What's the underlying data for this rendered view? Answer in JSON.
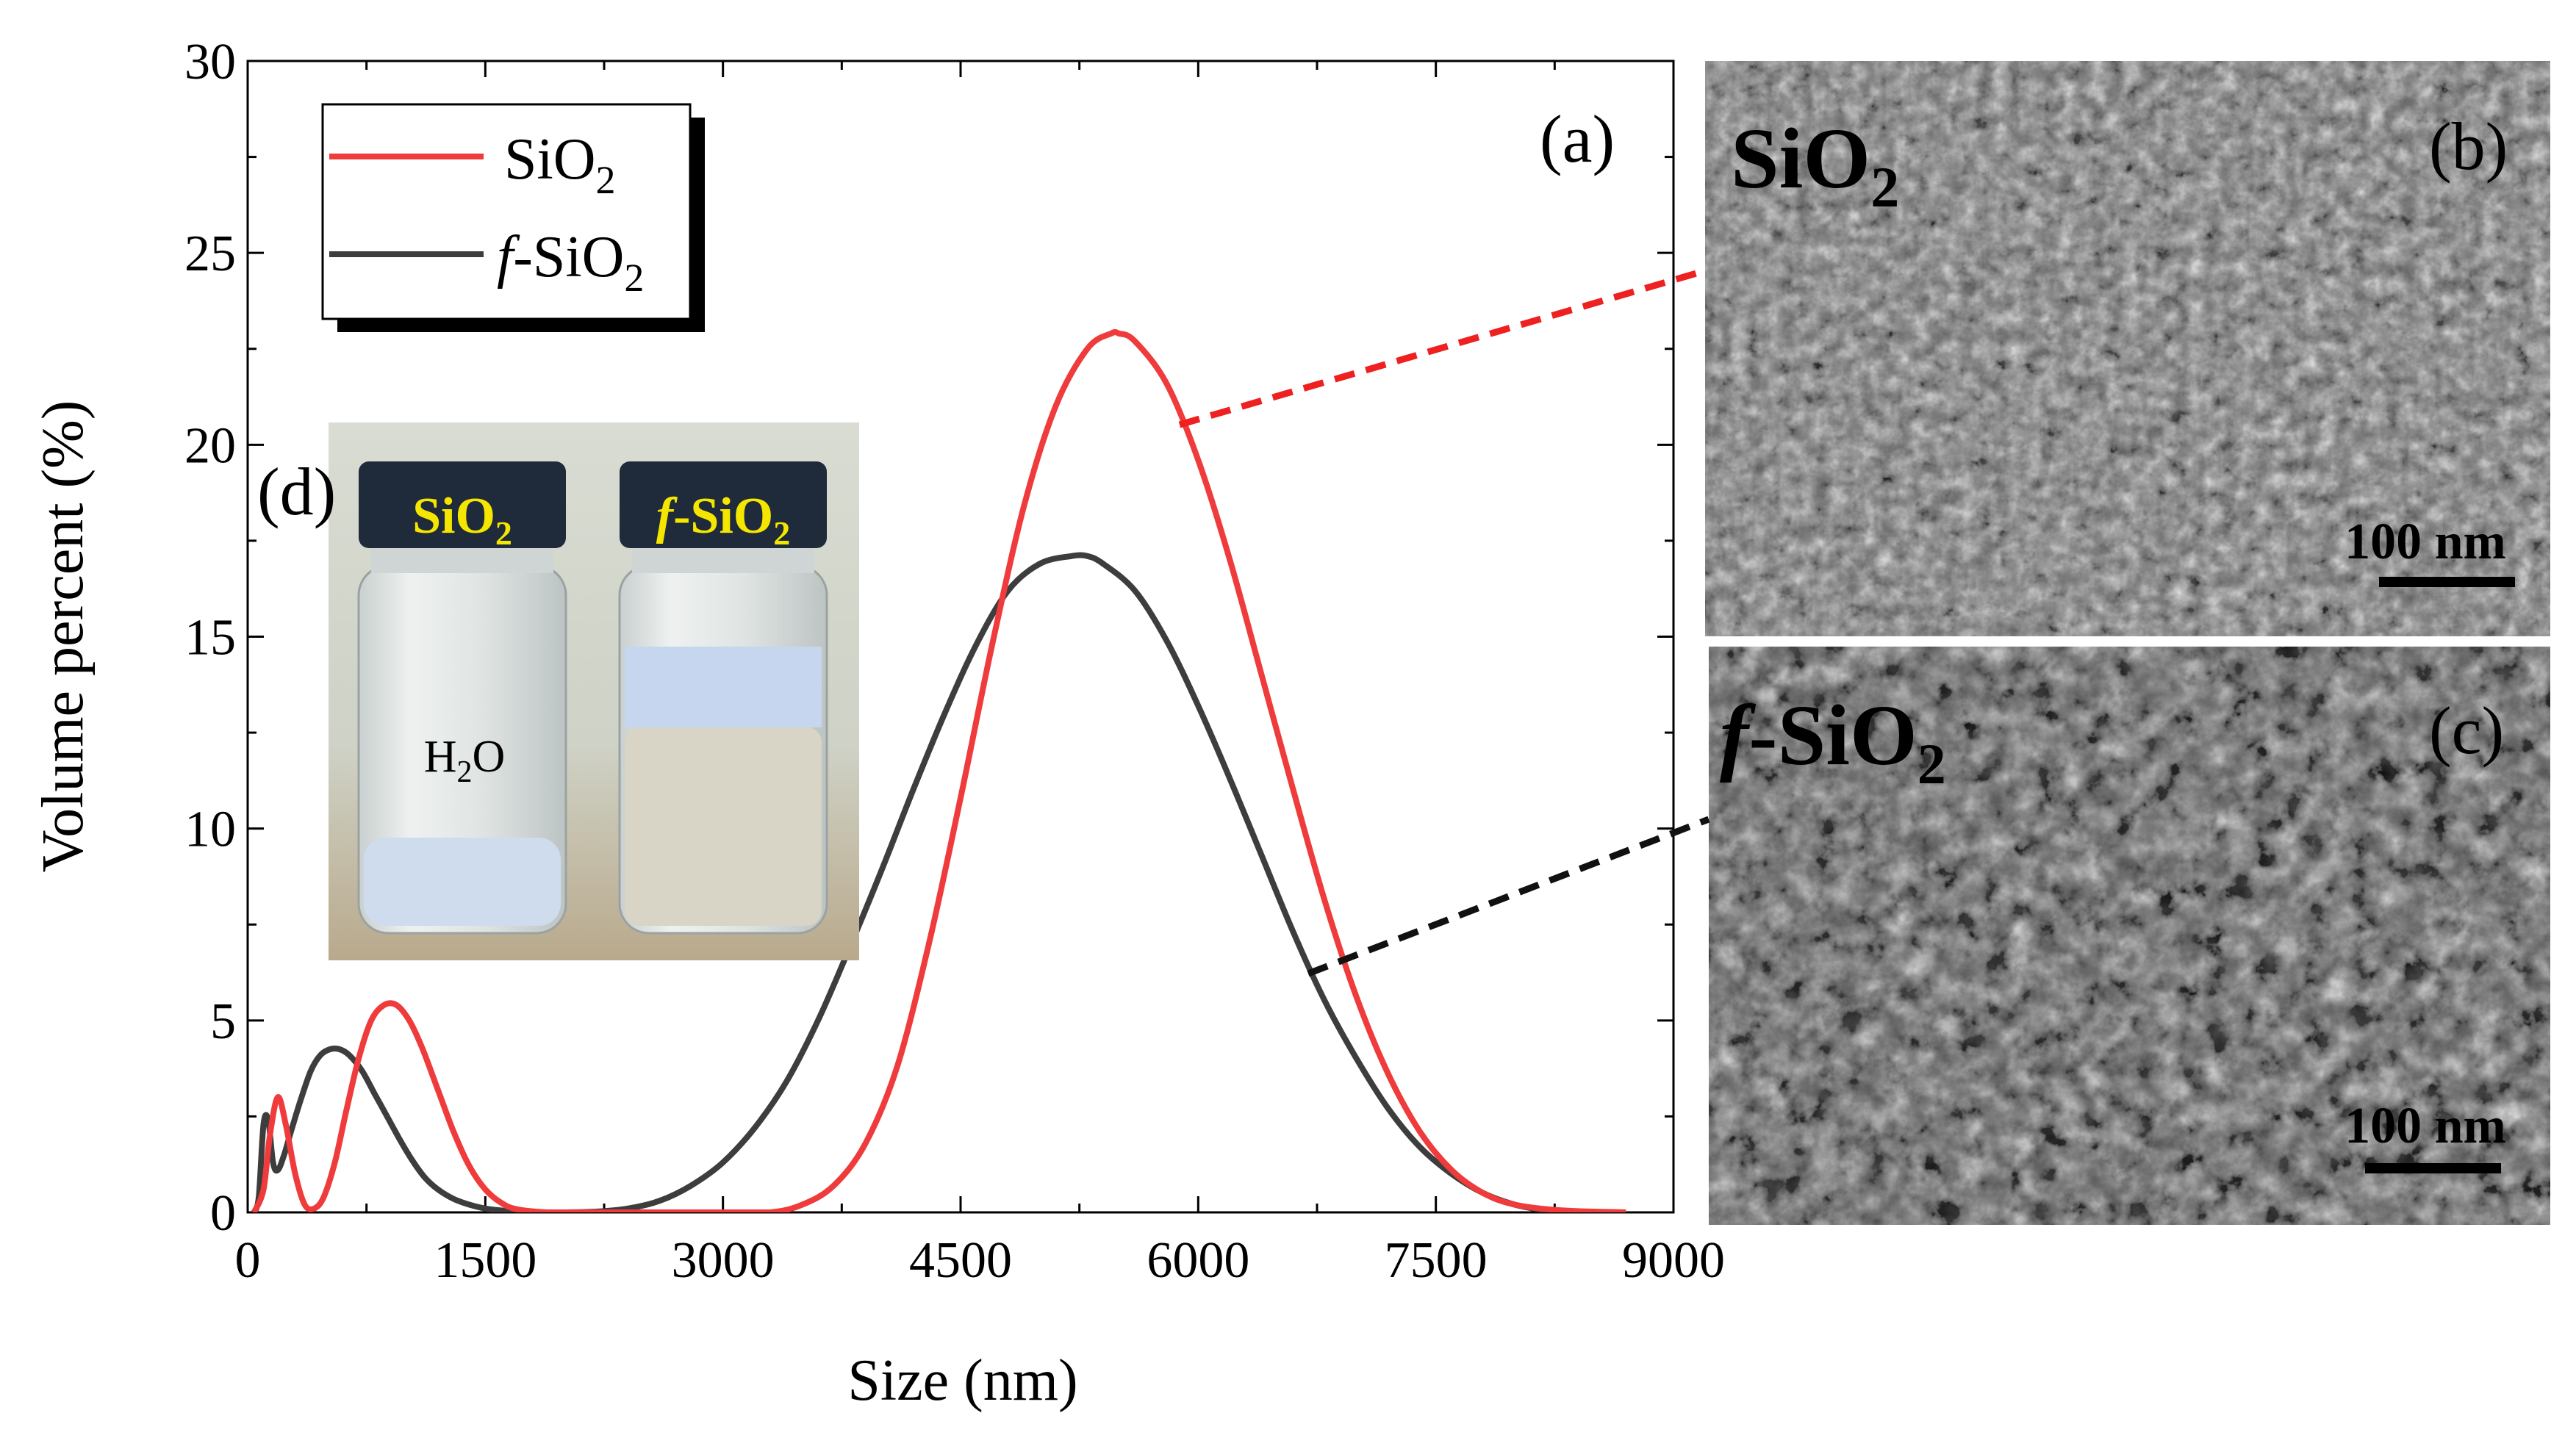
{
  "chart_data": {
    "type": "line",
    "title": "",
    "xlabel": "Size (nm)",
    "ylabel": "Volume percent (%)",
    "xlim": [
      0,
      9000
    ],
    "ylim": [
      0,
      30
    ],
    "xticks": [
      0,
      1500,
      3000,
      4500,
      6000,
      7500,
      9000
    ],
    "yticks": [
      0,
      5,
      10,
      15,
      20,
      25,
      30
    ],
    "grid": false,
    "legend_position": "top-left",
    "panel_label": "(a)",
    "series": [
      {
        "name_base": "SiO",
        "name_sub": "2",
        "color": "#ef3b3b",
        "x": [
          40,
          100,
          140,
          190,
          240,
          300,
          360,
          420,
          480,
          550,
          620,
          700,
          780,
          860,
          940,
          1020,
          1100,
          1200,
          1300,
          1400,
          1500,
          1600,
          1700,
          1900,
          2200,
          2600,
          3000,
          3300,
          3500,
          3700,
          3900,
          4100,
          4300,
          4500,
          4700,
          4900,
          5100,
          5300,
          5450,
          5500,
          5600,
          5800,
          6000,
          6200,
          6400,
          6600,
          6800,
          7000,
          7200,
          7400,
          7600,
          7800,
          8000,
          8300,
          8700
        ],
        "y": [
          0,
          0.6,
          2.0,
          3.0,
          2.3,
          1.0,
          0.2,
          0.1,
          0.4,
          1.3,
          2.6,
          4.0,
          5.0,
          5.4,
          5.4,
          5.0,
          4.3,
          3.2,
          2.1,
          1.2,
          0.6,
          0.25,
          0.08,
          0,
          0,
          0,
          0,
          0,
          0.2,
          0.7,
          1.8,
          3.8,
          7.0,
          10.8,
          14.8,
          18.4,
          21.0,
          22.5,
          22.9,
          22.9,
          22.7,
          21.6,
          19.6,
          17.0,
          14.0,
          11.0,
          8.1,
          5.6,
          3.6,
          2.1,
          1.1,
          0.5,
          0.2,
          0.05,
          0
        ]
      },
      {
        "name_base": "SiO",
        "name_sub": "2",
        "name_prefix": "f",
        "color": "#3d3d3d",
        "x": [
          40,
          70,
          100,
          130,
          160,
          190,
          230,
          280,
          340,
          400,
          460,
          520,
          580,
          640,
          720,
          800,
          880,
          960,
          1040,
          1120,
          1200,
          1300,
          1400,
          1500,
          1600,
          1700,
          1850,
          2000,
          2200,
          2400,
          2600,
          2800,
          3000,
          3200,
          3400,
          3600,
          3800,
          4000,
          4200,
          4400,
          4600,
          4800,
          5000,
          5200,
          5300,
          5400,
          5600,
          5800,
          6000,
          6200,
          6400,
          6600,
          6800,
          7000,
          7200,
          7400,
          7600,
          7800,
          8000,
          8200,
          8350
        ],
        "y": [
          0,
          0.4,
          2.3,
          2.4,
          1.3,
          1.1,
          1.5,
          2.2,
          3.0,
          3.7,
          4.1,
          4.25,
          4.25,
          4.1,
          3.7,
          3.1,
          2.5,
          1.9,
          1.35,
          0.9,
          0.6,
          0.35,
          0.2,
          0.1,
          0.05,
          0.02,
          0,
          0,
          0.02,
          0.1,
          0.3,
          0.7,
          1.3,
          2.2,
          3.4,
          5.0,
          6.9,
          8.9,
          11.0,
          13.0,
          14.8,
          16.2,
          16.9,
          17.1,
          17.1,
          16.9,
          16.2,
          14.9,
          13.2,
          11.3,
          9.3,
          7.3,
          5.5,
          4.0,
          2.7,
          1.7,
          1.0,
          0.5,
          0.2,
          0.05,
          0
        ]
      }
    ]
  },
  "panels": {
    "b": {
      "label": "(b)",
      "title_base": "SiO",
      "title_sub": "2",
      "scale_bar": "100 nm"
    },
    "c": {
      "label": "(c)",
      "title_prefix": "f",
      "title_base": "-SiO",
      "title_sub": "2",
      "scale_bar": "100 nm"
    },
    "d": {
      "label": "(d)",
      "vial_left_base": "SiO",
      "vial_left_sub": "2",
      "vial_right_prefix": "f",
      "vial_right_base": "-SiO",
      "vial_right_sub": "2",
      "water_base": "H",
      "water_sub": "2",
      "water_tail": "O"
    }
  },
  "colors": {
    "callout_red": "#ee2020",
    "callout_black": "#111111",
    "cap_text": "#f5e600",
    "cap": "#1f2a3a",
    "sem_bg": "#6e6e6e"
  }
}
